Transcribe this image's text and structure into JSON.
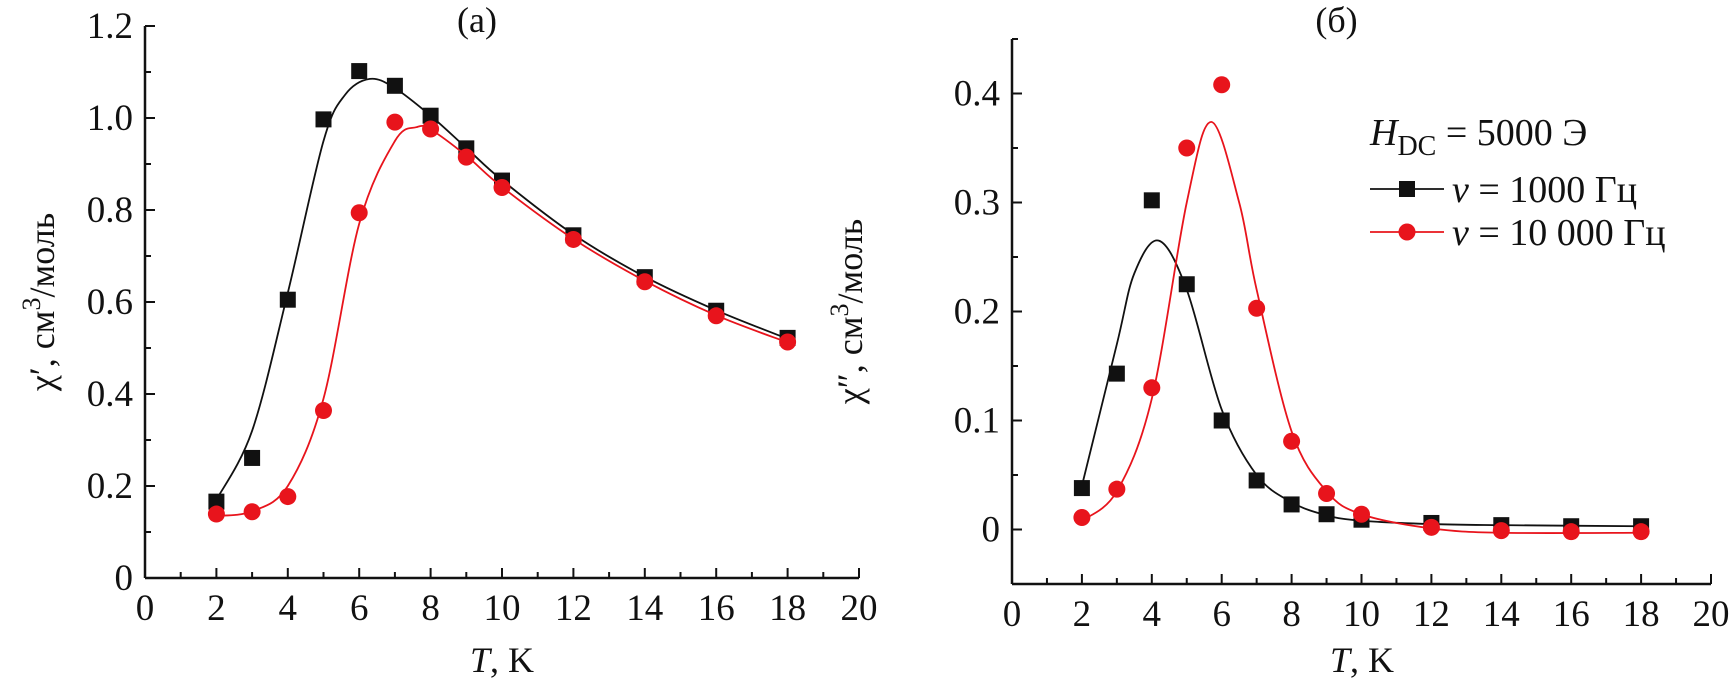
{
  "chart_data": [
    {
      "type": "scatter",
      "panel_label": "(a)",
      "xlabel": {
        "var": "T",
        "unit": ", K"
      },
      "ylabel": {
        "sym": "χ′",
        "rest": ", см",
        "sup": "3",
        "tail": "/моль"
      },
      "xlim": [
        0,
        20
      ],
      "ylim": [
        0,
        1.2
      ],
      "xticks": [
        "0",
        "2",
        "4",
        "6",
        "8",
        "10",
        "12",
        "14",
        "16",
        "18",
        "20"
      ],
      "yticks": [
        "0",
        "0.2",
        "0.4",
        "0.6",
        "0.8",
        "1.0",
        "1.2"
      ],
      "grid": false,
      "series": [
        {
          "color": "#111111",
          "marker": "square",
          "x": [
            2,
            3,
            4,
            5,
            6,
            7,
            8,
            9,
            10,
            12,
            14,
            16,
            18
          ],
          "y": [
            0.166,
            0.261,
            0.605,
            0.997,
            1.102,
            1.07,
            1.005,
            0.934,
            0.864,
            0.745,
            0.654,
            0.581,
            0.522
          ],
          "fit": [
            [
              2,
              0.17
            ],
            [
              3,
              0.32
            ],
            [
              4,
              0.62
            ],
            [
              5,
              0.95
            ],
            [
              5.6,
              1.05
            ],
            [
              6.3,
              1.085
            ],
            [
              7,
              1.065
            ],
            [
              8,
              1.005
            ],
            [
              9,
              0.935
            ],
            [
              10,
              0.865
            ],
            [
              12,
              0.747
            ],
            [
              14,
              0.655
            ],
            [
              16,
              0.582
            ],
            [
              18,
              0.52
            ]
          ]
        },
        {
          "color": "#e8141c",
          "marker": "circle",
          "x": [
            2,
            3,
            4,
            5,
            6,
            7,
            8,
            9,
            10,
            12,
            14,
            16,
            18
          ],
          "y": [
            0.139,
            0.144,
            0.177,
            0.364,
            0.794,
            0.991,
            0.976,
            0.915,
            0.849,
            0.736,
            0.644,
            0.57,
            0.513
          ],
          "fit": [
            [
              2,
              0.135
            ],
            [
              3,
              0.145
            ],
            [
              4,
              0.2
            ],
            [
              5,
              0.39
            ],
            [
              6,
              0.77
            ],
            [
              7,
              0.95
            ],
            [
              7.6,
              0.98
            ],
            [
              8,
              0.975
            ],
            [
              9,
              0.918
            ],
            [
              10,
              0.85
            ],
            [
              12,
              0.737
            ],
            [
              14,
              0.646
            ],
            [
              16,
              0.571
            ],
            [
              18,
              0.512
            ]
          ]
        }
      ]
    },
    {
      "type": "scatter",
      "panel_label": "(б)",
      "xlabel": {
        "var": "T",
        "unit": ", K"
      },
      "ylabel": {
        "sym": "χ″",
        "rest": ", см",
        "sup": "3",
        "tail": "/моль"
      },
      "xlim": [
        0,
        20
      ],
      "ylim": [
        -0.05,
        0.45
      ],
      "xticks": [
        "0",
        "2",
        "4",
        "6",
        "8",
        "10",
        "12",
        "14",
        "16",
        "18",
        "20"
      ],
      "yticks": [
        "0",
        "0.1",
        "0.2",
        "0.3",
        "0.4"
      ],
      "grid": false,
      "legend": {
        "placement": "top-right",
        "header": {
          "var": "H",
          "sub": "DC",
          "rest": " = 5000 Э"
        },
        "entries": [
          {
            "sym": "ν",
            "text": " = 1000 Гц"
          },
          {
            "sym": "ν",
            "text": " = 10 000 Гц"
          }
        ]
      },
      "series": [
        {
          "name": "ν = 1000 Гц",
          "color": "#111111",
          "marker": "square",
          "x": [
            2,
            3,
            4,
            5,
            6,
            7,
            8,
            9,
            10,
            12,
            14,
            16,
            18
          ],
          "y": [
            0.038,
            0.143,
            0.302,
            0.225,
            0.1,
            0.045,
            0.023,
            0.014,
            0.009,
            0.006,
            0.004,
            0.003,
            0.003
          ],
          "fit": [
            [
              2,
              0.04
            ],
            [
              3,
              0.17
            ],
            [
              3.5,
              0.235
            ],
            [
              4.2,
              0.265
            ],
            [
              5,
              0.22
            ],
            [
              6,
              0.11
            ],
            [
              7,
              0.05
            ],
            [
              8,
              0.025
            ],
            [
              9,
              0.013
            ],
            [
              10,
              0.008
            ],
            [
              12,
              0.005
            ],
            [
              14,
              0.004
            ],
            [
              18,
              0.003
            ]
          ]
        },
        {
          "name": "ν = 10 000 Гц",
          "color": "#e8141c",
          "marker": "circle",
          "x": [
            2,
            3,
            4,
            5,
            6,
            7,
            8,
            9,
            10,
            12,
            14,
            16,
            18
          ],
          "y": [
            0.011,
            0.037,
            0.13,
            0.35,
            0.408,
            0.203,
            0.081,
            0.033,
            0.014,
            0.002,
            -0.001,
            -0.002,
            -0.002
          ],
          "fit": [
            [
              2,
              0.008
            ],
            [
              3,
              0.035
            ],
            [
              4,
              0.12
            ],
            [
              5,
              0.3
            ],
            [
              5.7,
              0.374
            ],
            [
              6.5,
              0.3
            ],
            [
              7,
              0.22
            ],
            [
              8,
              0.09
            ],
            [
              9,
              0.035
            ],
            [
              10,
              0.014
            ],
            [
              12,
              0.001
            ],
            [
              14,
              -0.003
            ],
            [
              18,
              -0.003
            ]
          ]
        }
      ]
    }
  ]
}
